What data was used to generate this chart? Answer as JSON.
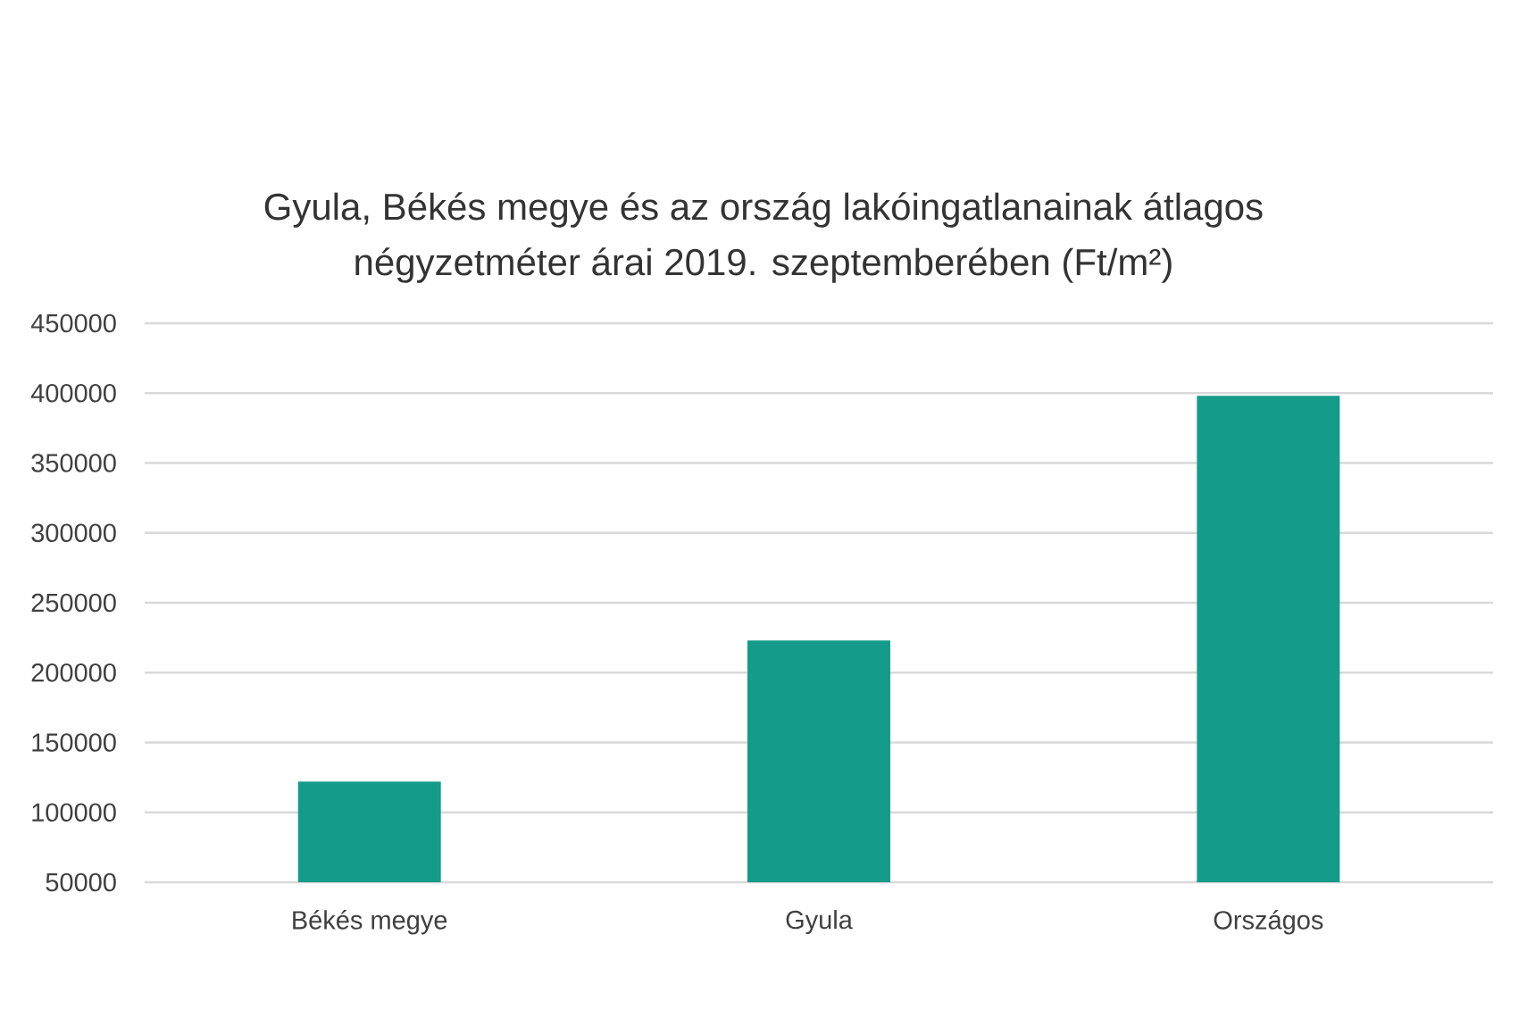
{
  "chart_data": {
    "type": "bar",
    "title": "Gyula, Békés megye és az ország lakóingatlanainak átlagos négyzetméter árai 2019. szeptemberében (Ft/m²)",
    "categories": [
      "Békés megye",
      "Gyula",
      "Országos"
    ],
    "values": [
      122000,
      223000,
      398000
    ],
    "color": "#149b8a",
    "ylim": [
      50000,
      450000
    ],
    "yticks": [
      50000,
      100000,
      150000,
      200000,
      250000,
      300000,
      350000,
      400000,
      450000
    ],
    "grid": "y"
  }
}
